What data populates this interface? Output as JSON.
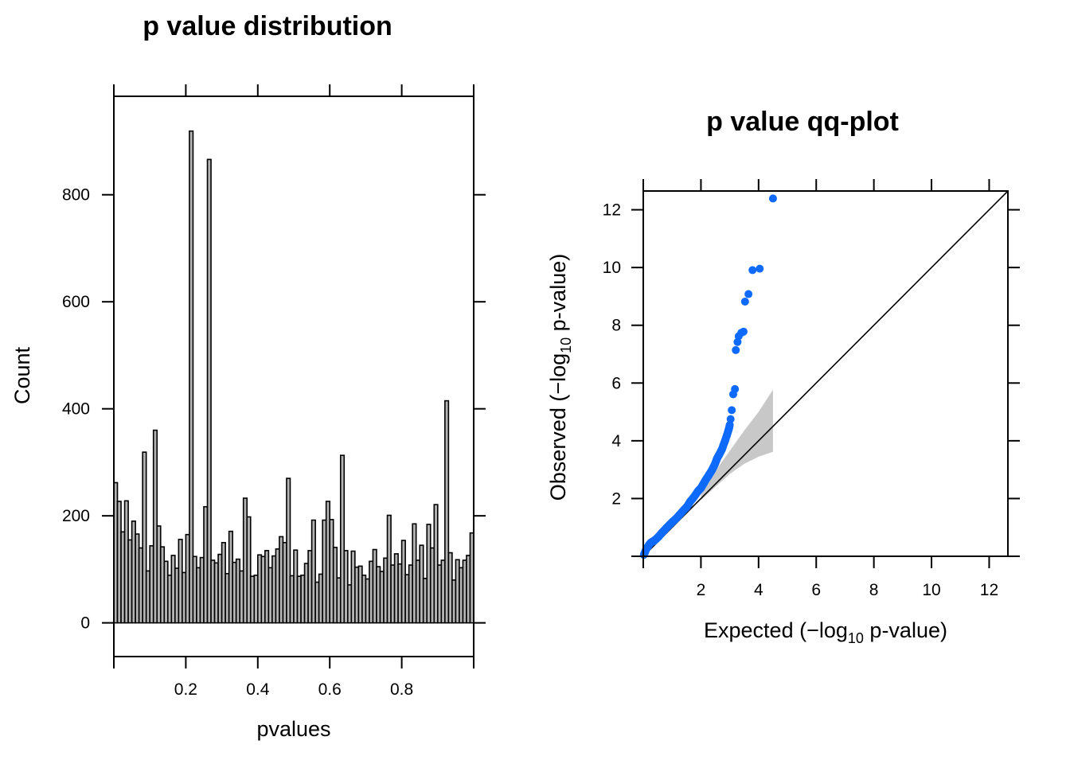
{
  "chart_data": [
    {
      "type": "bar",
      "title": "p value distribution",
      "xlabel": "pvalues",
      "ylabel": "Count",
      "xlim": [
        0,
        1
      ],
      "ylim": [
        -63,
        984
      ],
      "x_ticks": [
        0,
        0.2,
        0.4,
        0.6,
        0.8,
        1.0
      ],
      "x_tick_labels": [
        "",
        "0.2",
        "0.4",
        "0.6",
        "0.8",
        ""
      ],
      "y_ticks": [
        0,
        200,
        400,
        600,
        800
      ],
      "y_tick_labels": [
        "0",
        "200",
        "400",
        "600",
        "800"
      ],
      "bin_width": 0.01,
      "bin_start": 0,
      "values": [
        262,
        227,
        170,
        228,
        155,
        190,
        166,
        140,
        319,
        97,
        144,
        360,
        181,
        142,
        115,
        89,
        126,
        102,
        156,
        94,
        165,
        919,
        124,
        103,
        122,
        217,
        866,
        117,
        112,
        128,
        150,
        92,
        171,
        113,
        119,
        97,
        233,
        198,
        87,
        89,
        127,
        124,
        135,
        103,
        125,
        138,
        161,
        150,
        270,
        88,
        136,
        87,
        89,
        111,
        135,
        192,
        76,
        91,
        192,
        227,
        193,
        141,
        84,
        313,
        135,
        71,
        134,
        104,
        106,
        89,
        82,
        115,
        137,
        105,
        96,
        121,
        201,
        108,
        129,
        110,
        154,
        90,
        108,
        185,
        117,
        145,
        83,
        184,
        140,
        221,
        108,
        117,
        415,
        131,
        80,
        118,
        103,
        117,
        126,
        168
      ],
      "grid": false,
      "legend": null
    },
    {
      "type": "scatter",
      "title": "p value qq-plot",
      "xlabel": "Expected (−log10 p-value)",
      "ylabel": "Observed (−log10 p-value)",
      "xlabel_parts": {
        "pre": "Expected (−log",
        "sub": "10",
        "post": " p-value)"
      },
      "ylabel_parts": {
        "pre": "Observed (−log",
        "sub": "10",
        "post": " p-value)"
      },
      "xlim": [
        0,
        12.65
      ],
      "ylim": [
        0,
        12.65
      ],
      "x_ticks": [
        0,
        2,
        4,
        6,
        8,
        10,
        12
      ],
      "x_tick_labels": [
        "",
        "2",
        "4",
        "6",
        "8",
        "10",
        "12"
      ],
      "y_ticks": [
        0,
        2,
        4,
        6,
        8,
        10,
        12
      ],
      "y_tick_labels": [
        "",
        "2",
        "4",
        "6",
        "8",
        "10",
        "12"
      ],
      "point_color": "#0f6bff",
      "band_color": "#c8c8c8",
      "reference_line": {
        "from": [
          0,
          0
        ],
        "to": [
          12.65,
          12.65
        ]
      },
      "confidence_band": {
        "x": [
          2.0,
          2.5,
          3.0,
          3.5,
          4.0,
          4.5
        ],
        "upper": [
          2.25,
          2.95,
          3.65,
          4.35,
          5.0,
          5.77
        ],
        "lower": [
          1.95,
          2.4,
          2.85,
          3.2,
          3.45,
          3.62
        ]
      },
      "points": [
        [
          0.02,
          0.05
        ],
        [
          0.05,
          0.12
        ],
        [
          0.08,
          0.2
        ],
        [
          0.12,
          0.28
        ],
        [
          0.16,
          0.33
        ],
        [
          0.2,
          0.4
        ],
        [
          0.25,
          0.46
        ],
        [
          0.3,
          0.5
        ],
        [
          0.35,
          0.52
        ],
        [
          0.4,
          0.56
        ],
        [
          0.45,
          0.6
        ],
        [
          0.5,
          0.65
        ],
        [
          0.55,
          0.7
        ],
        [
          0.6,
          0.76
        ],
        [
          0.65,
          0.82
        ],
        [
          0.72,
          0.89
        ],
        [
          0.8,
          0.98
        ],
        [
          0.88,
          1.06
        ],
        [
          0.95,
          1.13
        ],
        [
          1.02,
          1.2
        ],
        [
          1.1,
          1.27
        ],
        [
          1.18,
          1.35
        ],
        [
          1.26,
          1.44
        ],
        [
          1.34,
          1.53
        ],
        [
          1.42,
          1.62
        ],
        [
          1.5,
          1.7
        ],
        [
          1.57,
          1.8
        ],
        [
          1.63,
          1.9
        ],
        [
          1.7,
          1.98
        ],
        [
          1.77,
          2.07
        ],
        [
          1.84,
          2.17
        ],
        [
          1.9,
          2.26
        ],
        [
          1.95,
          2.31
        ],
        [
          2.0,
          2.36
        ],
        [
          2.05,
          2.45
        ],
        [
          2.1,
          2.53
        ],
        [
          2.15,
          2.62
        ],
        [
          2.2,
          2.7
        ],
        [
          2.25,
          2.77
        ],
        [
          2.28,
          2.82
        ],
        [
          2.33,
          2.9
        ],
        [
          2.38,
          2.98
        ],
        [
          2.43,
          3.08
        ],
        [
          2.48,
          3.18
        ],
        [
          2.52,
          3.28
        ],
        [
          2.55,
          3.37
        ],
        [
          2.6,
          3.46
        ],
        [
          2.65,
          3.55
        ],
        [
          2.7,
          3.65
        ],
        [
          2.74,
          3.73
        ],
        [
          2.78,
          3.85
        ],
        [
          2.83,
          3.98
        ],
        [
          2.87,
          4.1
        ],
        [
          2.91,
          4.22
        ],
        [
          2.95,
          4.35
        ],
        [
          2.98,
          4.45
        ],
        [
          3.0,
          4.55
        ],
        [
          3.03,
          4.75
        ],
        [
          3.07,
          5.06
        ],
        [
          3.12,
          5.61
        ],
        [
          3.18,
          5.79
        ],
        [
          3.21,
          7.14
        ],
        [
          3.27,
          7.42
        ],
        [
          3.31,
          7.62
        ],
        [
          3.4,
          7.74
        ],
        [
          3.48,
          7.78
        ],
        [
          3.53,
          8.82
        ],
        [
          3.65,
          9.08
        ],
        [
          3.79,
          9.91
        ],
        [
          4.04,
          9.96
        ],
        [
          4.5,
          12.39
        ]
      ],
      "grid": false,
      "legend": null
    }
  ]
}
